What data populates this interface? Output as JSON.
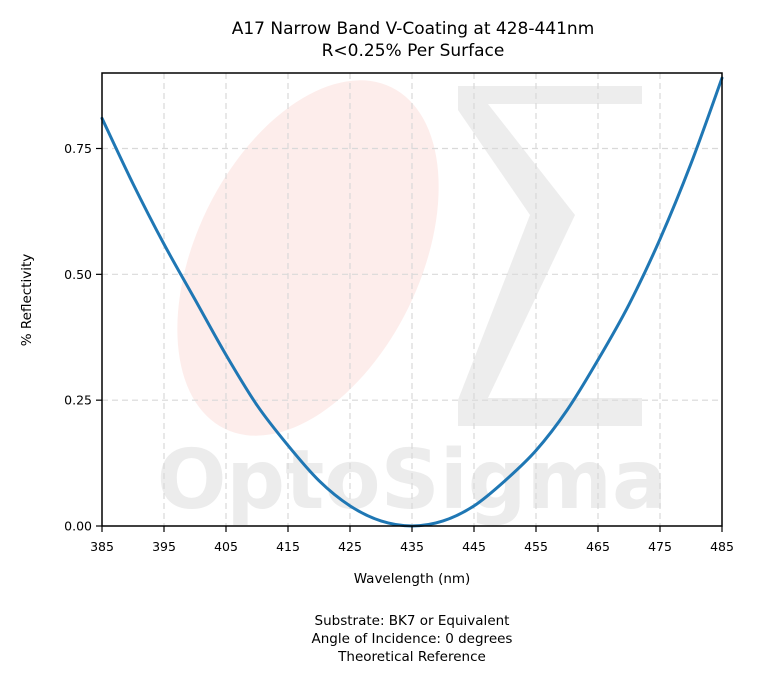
{
  "chart_data": {
    "type": "line",
    "title": "A17 Narrow Band V-Coating at 428-441nm",
    "subtitle": "R<0.25% Per Surface",
    "xlabel": "Wavelength (nm)",
    "ylabel": "% Reflectivity",
    "xlim": [
      385,
      485
    ],
    "ylim": [
      0,
      0.9
    ],
    "x_ticks": [
      385,
      395,
      405,
      415,
      425,
      435,
      445,
      455,
      465,
      475,
      485
    ],
    "y_ticks": [
      0.0,
      0.25,
      0.5,
      0.75
    ],
    "y_tick_labels": [
      "0.00",
      "0.25",
      "0.50",
      "0.75"
    ],
    "grid": true,
    "series": [
      {
        "color": "#1f77b4",
        "x": [
          385,
          390,
          395,
          400,
          405,
          410,
          415,
          420,
          425,
          430,
          435,
          440,
          445,
          450,
          455,
          460,
          465,
          470,
          475,
          480,
          485
        ],
        "y": [
          0.81,
          0.68,
          0.56,
          0.45,
          0.34,
          0.24,
          0.16,
          0.09,
          0.04,
          0.01,
          0.0,
          0.01,
          0.04,
          0.09,
          0.15,
          0.23,
          0.33,
          0.44,
          0.57,
          0.72,
          0.89
        ]
      }
    ],
    "watermark": "OptoSigma",
    "footer": [
      "Substrate: BK7 or Equivalent",
      "Angle of Incidence: 0 degrees",
      "Theoretical Reference"
    ]
  },
  "colors": {
    "line": "#1f77b4",
    "grid": "#d9d9d9",
    "watermark_gray": "#e6e6e6",
    "watermark_pink": "#fde8e6"
  }
}
